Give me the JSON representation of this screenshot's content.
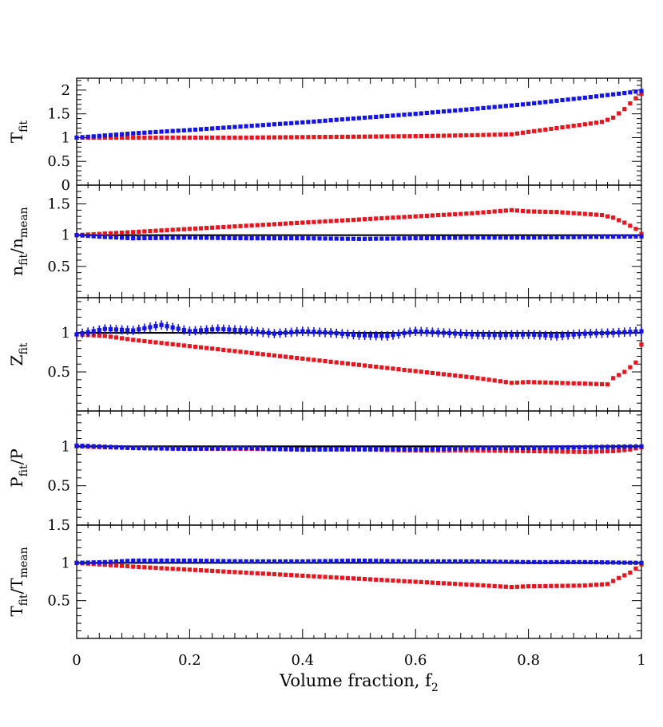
{
  "chart_data": {
    "type": "scatter",
    "xlabel": {
      "main": "Volume fraction, f",
      "sub": "2"
    },
    "xlim": [
      0,
      1
    ],
    "xticks": [
      {
        "value": 0,
        "label": "0"
      },
      {
        "value": 0.2,
        "label": "0.2"
      },
      {
        "value": 0.4,
        "label": "0.4"
      },
      {
        "value": 0.6,
        "label": "0.6"
      },
      {
        "value": 0.8,
        "label": "0.8"
      },
      {
        "value": 1,
        "label": "1"
      }
    ],
    "series_colors": {
      "red": "#e8141e",
      "blue": "#1414e6"
    },
    "panels": [
      {
        "id": "tfit",
        "ylabel": [
          {
            "main": "T",
            "sub": "fit"
          }
        ],
        "ylim": [
          0,
          2.25
        ],
        "yticks": [
          {
            "value": 0,
            "label": "0"
          },
          {
            "value": 0.5,
            "label": "0.5"
          },
          {
            "value": 1,
            "label": "1"
          },
          {
            "value": 1.5,
            "label": "1.5"
          },
          {
            "value": 2,
            "label": "2"
          }
        ],
        "reference_line": null,
        "red": {
          "x": [
            0,
            0.1,
            0.2,
            0.3,
            0.4,
            0.5,
            0.6,
            0.7,
            0.77,
            0.8,
            0.85,
            0.9,
            0.93,
            0.95,
            0.97,
            0.985,
            1.0
          ],
          "y": [
            1.0,
            1.0,
            1.0,
            1.0,
            1.01,
            1.02,
            1.03,
            1.05,
            1.07,
            1.12,
            1.2,
            1.28,
            1.33,
            1.42,
            1.6,
            1.78,
            1.92
          ],
          "err": 0.015
        },
        "blue": {
          "x": [
            0,
            0.1,
            0.2,
            0.3,
            0.4,
            0.5,
            0.6,
            0.7,
            0.8,
            0.9,
            1.0
          ],
          "y": [
            1.0,
            1.09,
            1.16,
            1.24,
            1.32,
            1.41,
            1.5,
            1.6,
            1.71,
            1.84,
            1.98
          ],
          "err": 0.015
        }
      },
      {
        "id": "nfit",
        "ylabel": [
          {
            "main": "n",
            "sub": "fit"
          },
          {
            "main": "/n",
            "sub": "mean"
          }
        ],
        "ylim": [
          0,
          1.8
        ],
        "yticks": [
          {
            "value": 0.5,
            "label": "0.5"
          },
          {
            "value": 1,
            "label": "1"
          },
          {
            "value": 1.5,
            "label": "1.5"
          }
        ],
        "reference_line": 1,
        "red": {
          "x": [
            0,
            0.1,
            0.2,
            0.3,
            0.4,
            0.5,
            0.6,
            0.7,
            0.77,
            0.8,
            0.85,
            0.9,
            0.93,
            0.95,
            0.97,
            0.99,
            1.0
          ],
          "y": [
            1.0,
            1.05,
            1.1,
            1.15,
            1.2,
            1.25,
            1.3,
            1.35,
            1.4,
            1.38,
            1.37,
            1.34,
            1.32,
            1.28,
            1.2,
            1.1,
            1.02
          ],
          "err": 0.015
        },
        "blue": {
          "x": [
            0,
            0.05,
            0.1,
            0.2,
            0.3,
            0.4,
            0.5,
            0.6,
            0.7,
            0.8,
            0.9,
            1.0
          ],
          "y": [
            1.0,
            0.97,
            0.95,
            0.96,
            0.95,
            0.95,
            0.94,
            0.95,
            0.96,
            0.96,
            0.97,
            0.98
          ],
          "err": 0.03
        }
      },
      {
        "id": "zfit",
        "ylabel": [
          {
            "main": "Z",
            "sub": "fit"
          }
        ],
        "ylim": [
          0,
          1.45
        ],
        "yticks": [
          {
            "value": 0.5,
            "label": "0.5"
          },
          {
            "value": 1,
            "label": "1"
          }
        ],
        "reference_line": 1,
        "red": {
          "x": [
            0,
            0.05,
            0.1,
            0.2,
            0.3,
            0.4,
            0.5,
            0.6,
            0.7,
            0.77,
            0.8,
            0.9,
            0.94,
            0.95,
            0.97,
            0.99,
            1.0
          ],
          "y": [
            0.98,
            0.96,
            0.91,
            0.83,
            0.75,
            0.67,
            0.59,
            0.51,
            0.43,
            0.36,
            0.37,
            0.35,
            0.34,
            0.42,
            0.5,
            0.62,
            0.85
          ],
          "err": 0.015
        },
        "blue": {
          "x": [
            0,
            0.05,
            0.1,
            0.15,
            0.2,
            0.25,
            0.3,
            0.35,
            0.4,
            0.45,
            0.5,
            0.55,
            0.6,
            0.65,
            0.7,
            0.75,
            0.8,
            0.85,
            0.9,
            0.95,
            1.0
          ],
          "y": [
            0.98,
            1.05,
            1.03,
            1.1,
            1.02,
            1.05,
            1.03,
            0.99,
            1.02,
            1.0,
            0.97,
            0.96,
            1.02,
            1.0,
            0.98,
            0.97,
            0.98,
            0.96,
            0.99,
            1.0,
            1.02
          ],
          "err": 0.06
        }
      },
      {
        "id": "pfit",
        "ylabel": [
          {
            "main": "P",
            "sub": "fit"
          },
          {
            "main": "/P",
            "sub": ""
          }
        ],
        "ylim": [
          0,
          1.45
        ],
        "yticks": [
          {
            "value": 0.5,
            "label": "0.5"
          },
          {
            "value": 1,
            "label": "1"
          }
        ],
        "reference_line": 1,
        "red": {
          "x": [
            0,
            0.1,
            0.2,
            0.3,
            0.4,
            0.5,
            0.6,
            0.7,
            0.8,
            0.9,
            0.95,
            0.98,
            1.0
          ],
          "y": [
            1.0,
            0.98,
            0.97,
            0.97,
            0.96,
            0.96,
            0.95,
            0.95,
            0.94,
            0.93,
            0.94,
            0.96,
            0.99
          ],
          "err": 0.02
        },
        "blue": {
          "x": [
            0,
            0.1,
            0.2,
            0.3,
            0.4,
            0.5,
            0.6,
            0.7,
            0.8,
            0.9,
            1.0
          ],
          "y": [
            1.01,
            0.98,
            0.97,
            0.98,
            0.96,
            0.97,
            0.96,
            0.98,
            0.98,
            0.99,
            1.0
          ],
          "err": 0.03
        }
      },
      {
        "id": "tmean",
        "ylabel": [
          {
            "main": "T",
            "sub": "fit"
          },
          {
            "main": "/T",
            "sub": "mean"
          }
        ],
        "ylim": [
          0,
          1.5
        ],
        "yticks": [
          {
            "value": 0.5,
            "label": "0.5"
          },
          {
            "value": 1,
            "label": "1"
          },
          {
            "value": 1.5,
            "label": "1.5"
          }
        ],
        "reference_line": 1,
        "red": {
          "x": [
            0,
            0.1,
            0.2,
            0.3,
            0.4,
            0.5,
            0.6,
            0.7,
            0.77,
            0.8,
            0.9,
            0.94,
            0.96,
            0.98,
            1.0
          ],
          "y": [
            1.0,
            0.95,
            0.91,
            0.87,
            0.83,
            0.79,
            0.75,
            0.71,
            0.68,
            0.69,
            0.7,
            0.72,
            0.8,
            0.87,
            0.98
          ],
          "err": 0.01
        },
        "blue": {
          "x": [
            0,
            0.05,
            0.1,
            0.2,
            0.3,
            0.4,
            0.5,
            0.6,
            0.7,
            0.8,
            0.9,
            1.0
          ],
          "y": [
            1.0,
            1.01,
            1.03,
            1.03,
            1.02,
            1.02,
            1.03,
            1.02,
            1.02,
            1.01,
            1.01,
            1.0
          ],
          "err": 0.015
        }
      }
    ]
  }
}
